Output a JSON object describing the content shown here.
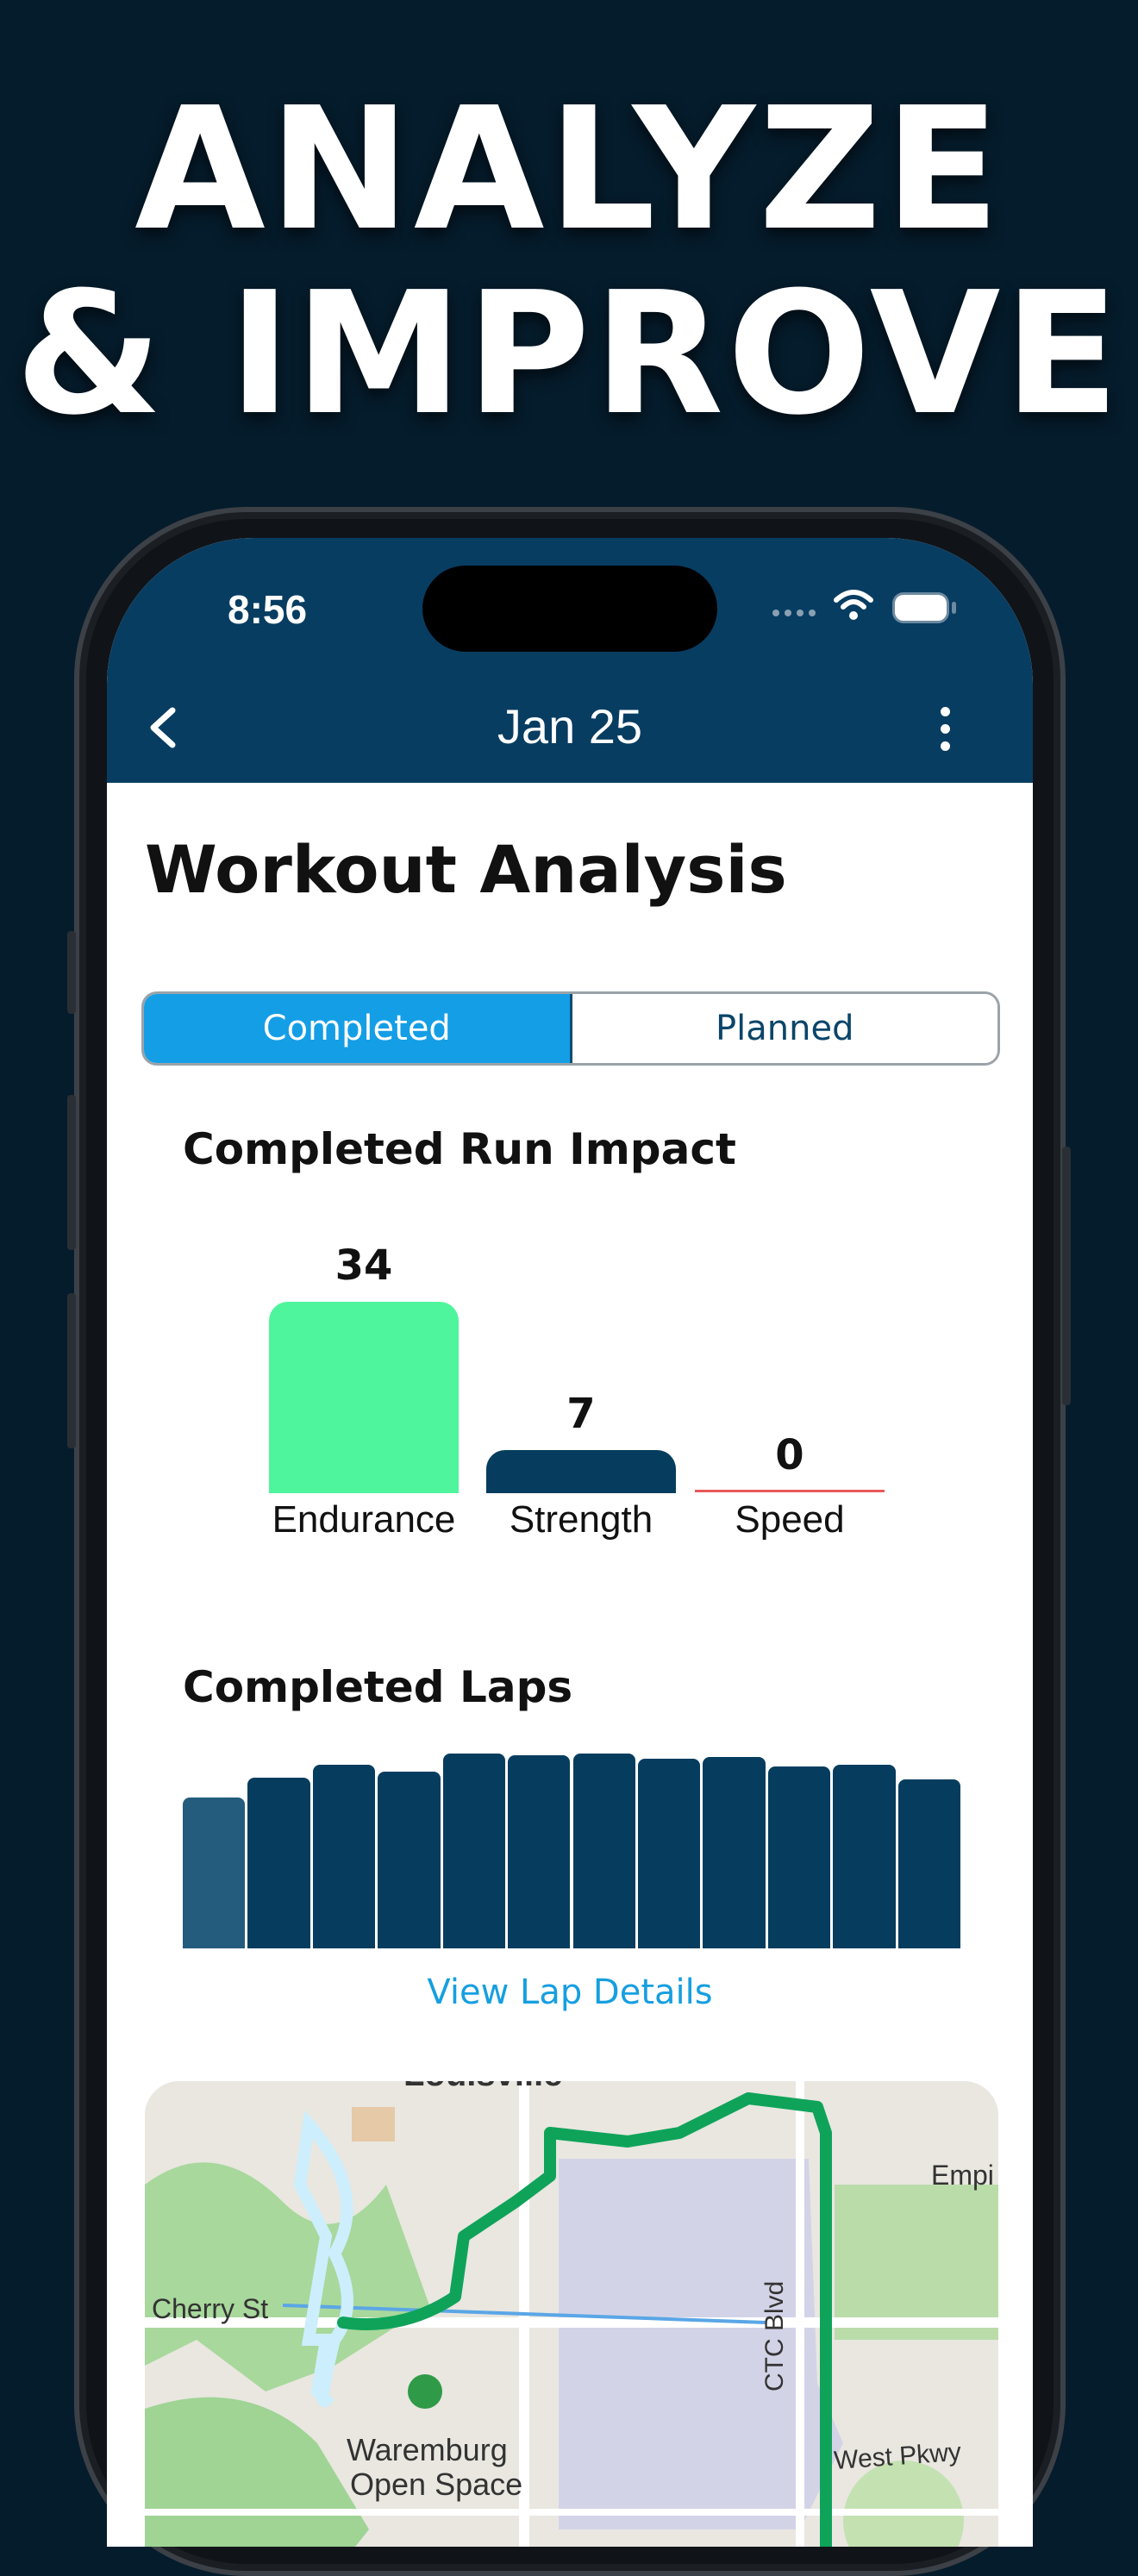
{
  "headline": {
    "line1": "ANALYZE",
    "line2": "& IMPROVE"
  },
  "status_bar": {
    "time": "8:56"
  },
  "nav": {
    "title": "Jan 25"
  },
  "page": {
    "title": "Workout Analysis"
  },
  "tabs": [
    {
      "label": "Completed",
      "active": true
    },
    {
      "label": "Planned",
      "active": false
    }
  ],
  "run_impact": {
    "title": "Completed Run Impact",
    "items": [
      {
        "label": "Endurance",
        "value": "34",
        "color": "#4ff59c"
      },
      {
        "label": "Strength",
        "value": "7",
        "color": "#063d5e"
      },
      {
        "label": "Speed",
        "value": "0",
        "color": "#e8595a"
      }
    ]
  },
  "laps": {
    "title": "Completed Laps",
    "link": "View Lap Details",
    "lap_values": [
      0.82,
      0.93,
      1.0,
      0.96,
      1.06,
      1.05,
      1.06,
      1.03,
      1.04,
      0.99,
      1.0,
      0.92
    ]
  },
  "map": {
    "labels": [
      "Louisville",
      "Cherry St",
      "Waremburg",
      "Open Space",
      "CTC Blvd",
      "Empi",
      "West Pkwy"
    ]
  },
  "colors": {
    "background": "#051c2c",
    "header": "#083d62",
    "accent": "#149ee6",
    "route": "#0fa35a"
  }
}
